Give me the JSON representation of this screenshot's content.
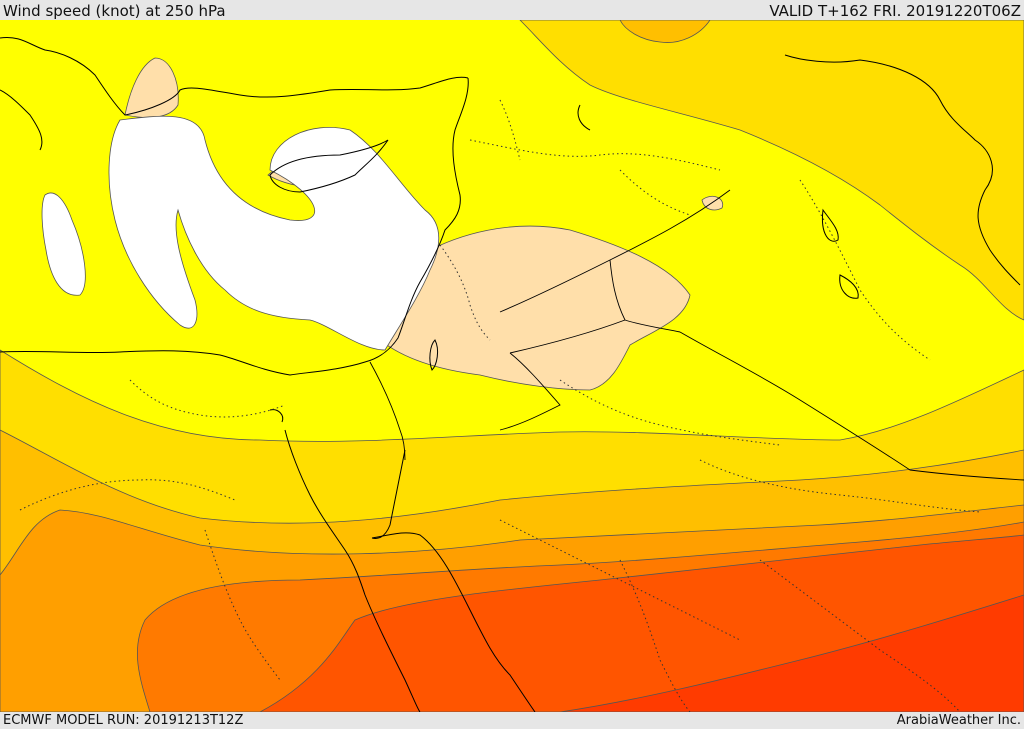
{
  "header": {
    "title": "Wind speed (knot) at 250 hPa",
    "valid": "VALID T+162 FRI. 20191220T06Z"
  },
  "footer": {
    "model_run": "ECMWF MODEL RUN: 20191213T12Z",
    "credit": "ArabiaWeather Inc."
  },
  "colors": {
    "band_1": "#ffffff",
    "band_2": "#ffdfaa",
    "band_3": "#ffff00",
    "band_4": "#ffdf00",
    "band_5": "#ffbf00",
    "band_6": "#ff9f00",
    "band_7": "#ff7a00",
    "band_8": "#ff5500",
    "band_9": "#ff3b00"
  }
}
